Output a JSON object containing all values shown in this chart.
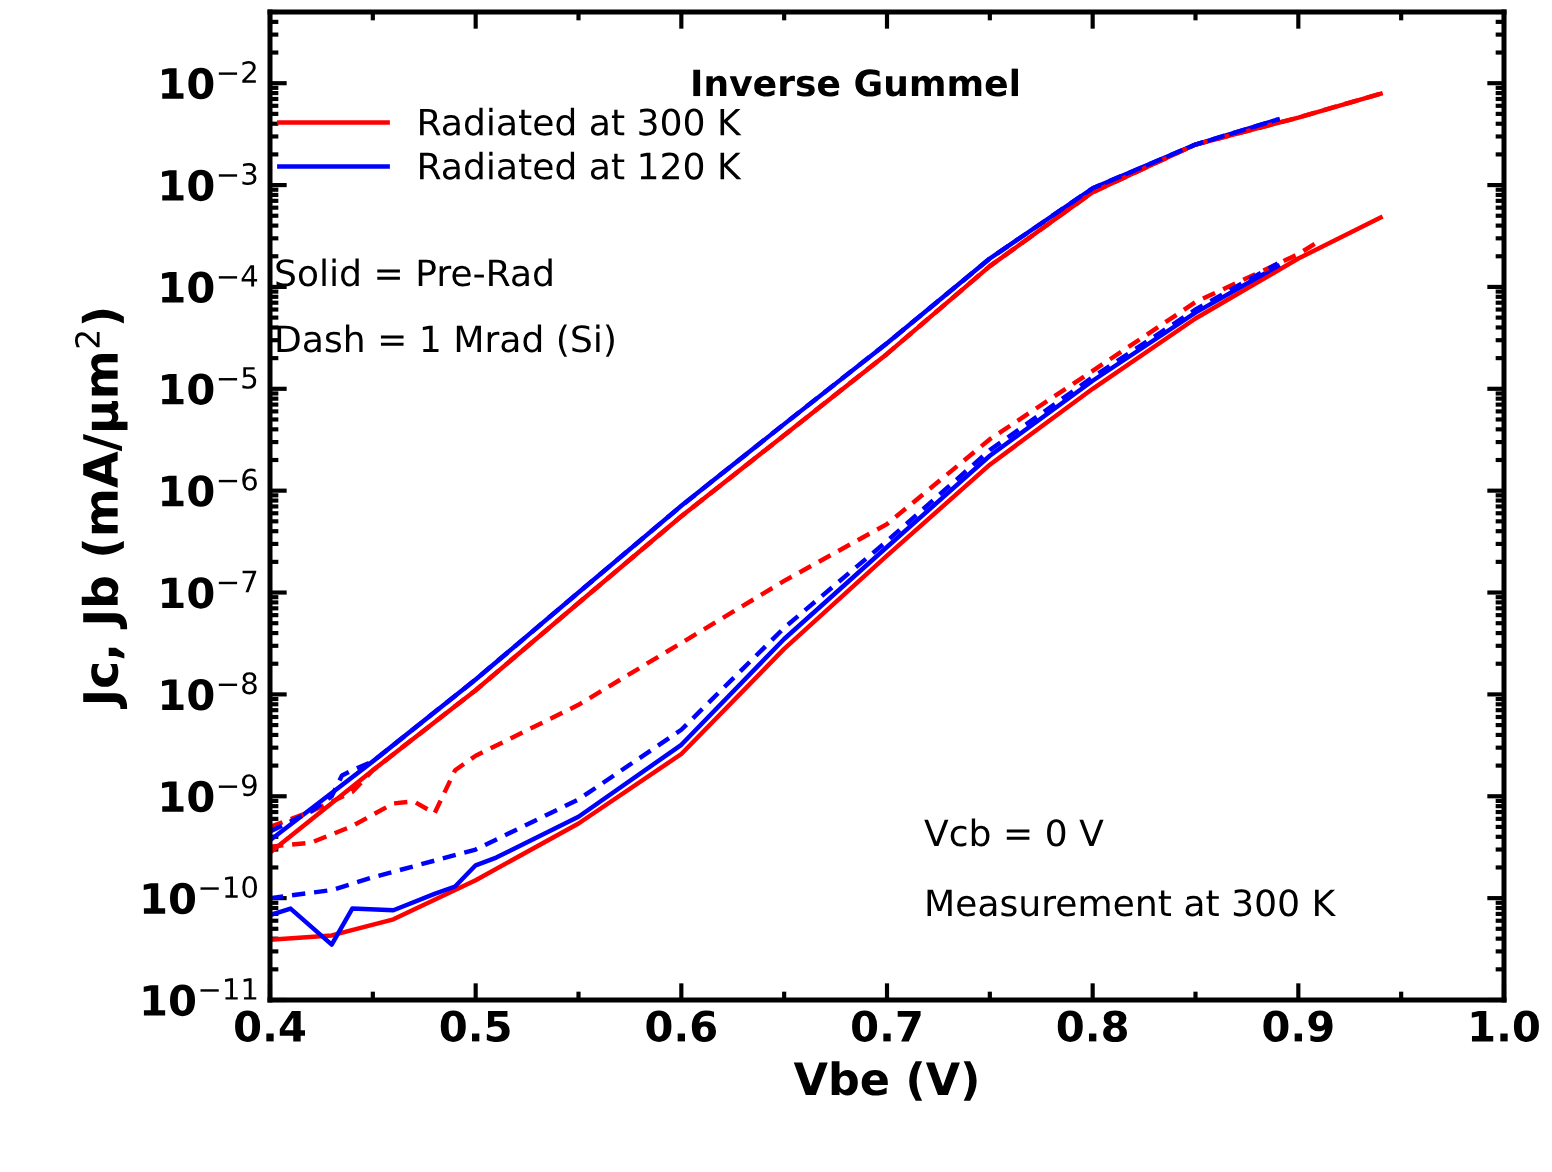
{
  "chart_data": {
    "type": "line",
    "title": "Inverse Gummel",
    "xlabel": "Vbe (V)",
    "ylabel": "Jc, Jb (mA/μm$^{2}$)",
    "annotations": [
      "Solid = Pre-Rad",
      "Dash = 1 Mrad (Si)",
      "Vcb = 0 V",
      "Measurement at 300 K"
    ],
    "log": "y",
    "grid": false,
    "legend": "top left",
    "marker": "none",
    "xlim": [
      0.4,
      1.0
    ],
    "xticks": [
      {
        "value": 0.4,
        "label": "0.4"
      },
      {
        "value": 0.5,
        "label": "0.5"
      },
      {
        "value": 0.6,
        "label": "0.6"
      },
      {
        "value": 0.7,
        "label": "0.7"
      },
      {
        "value": 0.8,
        "label": "0.8"
      },
      {
        "value": 0.9,
        "label": "0.9"
      },
      {
        "value": 1.0,
        "label": "1.0"
      }
    ],
    "ylim": [
      1e-11,
      0.05
    ],
    "yticks": [
      {
        "value": 1e-11,
        "label": "10$^{−11}$"
      },
      {
        "value": 1e-10,
        "label": "10$^{−10}$"
      },
      {
        "value": 1e-09,
        "label": "10$^{−9}$"
      },
      {
        "value": 1e-08,
        "label": "10$^{−8}$"
      },
      {
        "value": 1e-07,
        "label": "10$^{−7}$"
      },
      {
        "value": 1e-06,
        "label": "10$^{−6}$"
      },
      {
        "value": 1e-05,
        "label": "10$^{−5}$"
      },
      {
        "value": 0.0001,
        "label": "10$^{−4}$"
      },
      {
        "value": 0.001,
        "label": "10$^{−3}$"
      },
      {
        "value": 0.01,
        "label": "10$^{−2}$"
      }
    ],
    "series": [
      {
        "name": "Radiated at 300 K",
        "color": "#ff0000",
        "line_style": "solid",
        "x": [
          0.4,
          0.45,
          0.5,
          0.55,
          0.6,
          0.65,
          0.7,
          0.75,
          0.8,
          0.85,
          0.9,
          0.94
        ],
        "values": [
          2.8e-10,
          1.8e-09,
          1.1e-08,
          7.9e-08,
          5.6e-07,
          3.5e-06,
          2.2e-05,
          0.00016,
          0.00085,
          0.0025,
          0.0046,
          0.0079
        ]
      },
      {
        "name": "Radiated at 120 K",
        "color": "#0000ff",
        "line_style": "solid",
        "x": [
          0.4,
          0.45,
          0.5,
          0.55,
          0.6,
          0.65,
          0.7,
          0.75,
          0.8,
          0.85,
          0.89
        ],
        "values": [
          3.7e-10,
          2.2e-09,
          1.4e-08,
          1e-07,
          7.1e-07,
          4.5e-06,
          2.8e-05,
          0.00019,
          0.00093,
          0.0025,
          0.0044
        ]
      },
      {
        "color": "#ff0000",
        "line_style": "dashed",
        "x": [
          0.4,
          0.42,
          0.44,
          0.45,
          0.5,
          0.55,
          0.6,
          0.65,
          0.7,
          0.75,
          0.8,
          0.85,
          0.9,
          0.94
        ],
        "values": [
          5e-10,
          7.1e-10,
          1.1e-09,
          1.8e-09,
          1.1e-08,
          7.9e-08,
          5.6e-07,
          3.5e-06,
          2.2e-05,
          0.00016,
          0.00085,
          0.0025,
          0.0046,
          0.0079
        ]
      },
      {
        "color": "#0000ff",
        "line_style": "dashed",
        "x": [
          0.4,
          0.42,
          0.43,
          0.435,
          0.44,
          0.45,
          0.5,
          0.55,
          0.6,
          0.65,
          0.7,
          0.75,
          0.8,
          0.85,
          0.89
        ],
        "values": [
          4.5e-10,
          7.1e-10,
          1e-09,
          1.6e-09,
          1.8e-09,
          2.2e-09,
          1.4e-08,
          1e-07,
          7.1e-07,
          4.5e-06,
          2.8e-05,
          0.00019,
          0.00093,
          0.0025,
          0.0044
        ]
      },
      {
        "color": "#ff0000",
        "line_style": "solid",
        "x": [
          0.4,
          0.43,
          0.46,
          0.49,
          0.5,
          0.55,
          0.6,
          0.65,
          0.7,
          0.75,
          0.8,
          0.85,
          0.9,
          0.94
        ],
        "values": [
          3.9e-11,
          4.3e-11,
          6.2e-11,
          1.2e-10,
          1.5e-10,
          5.4e-10,
          2.6e-09,
          2.8e-08,
          2.3e-07,
          1.8e-06,
          1e-05,
          4.9e-05,
          0.00019,
          0.00048
        ]
      },
      {
        "color": "#0000ff",
        "line_style": "solid",
        "x": [
          0.4,
          0.41,
          0.43,
          0.44,
          0.46,
          0.48,
          0.49,
          0.5,
          0.51,
          0.55,
          0.6,
          0.65,
          0.7,
          0.75,
          0.8,
          0.85,
          0.89
        ],
        "values": [
          6.8e-11,
          7.9e-11,
          3.5e-11,
          7.9e-11,
          7.6e-11,
          1.1e-10,
          1.3e-10,
          2.1e-10,
          2.5e-10,
          6.3e-10,
          3.2e-09,
          3.5e-08,
          2.8e-07,
          2.2e-06,
          1.2e-05,
          5.6e-05,
          0.00016
        ]
      },
      {
        "color": "#ff0000",
        "line_style": "dashed",
        "x": [
          0.4,
          0.42,
          0.44,
          0.46,
          0.47,
          0.48,
          0.49,
          0.5,
          0.55,
          0.6,
          0.65,
          0.7,
          0.75,
          0.8,
          0.85,
          0.9,
          0.91
        ],
        "values": [
          3.2e-10,
          3.5e-10,
          5.1e-10,
          8.5e-10,
          8.9e-10,
          6.8e-10,
          1.8e-09,
          2.5e-09,
          7.9e-09,
          3.2e-08,
          1.3e-07,
          4.7e-07,
          3.2e-06,
          1.5e-05,
          7.1e-05,
          0.00021,
          0.00028
        ]
      },
      {
        "color": "#0000ff",
        "line_style": "dashed",
        "x": [
          0.4,
          0.43,
          0.45,
          0.5,
          0.55,
          0.6,
          0.65,
          0.7,
          0.75,
          0.8,
          0.85,
          0.89
        ],
        "values": [
          1e-10,
          1.2e-10,
          1.6e-10,
          3e-10,
          9.3e-10,
          4.5e-09,
          4.5e-08,
          3.2e-07,
          2.5e-06,
          1.3e-05,
          6e-05,
          0.00017
        ]
      }
    ]
  }
}
